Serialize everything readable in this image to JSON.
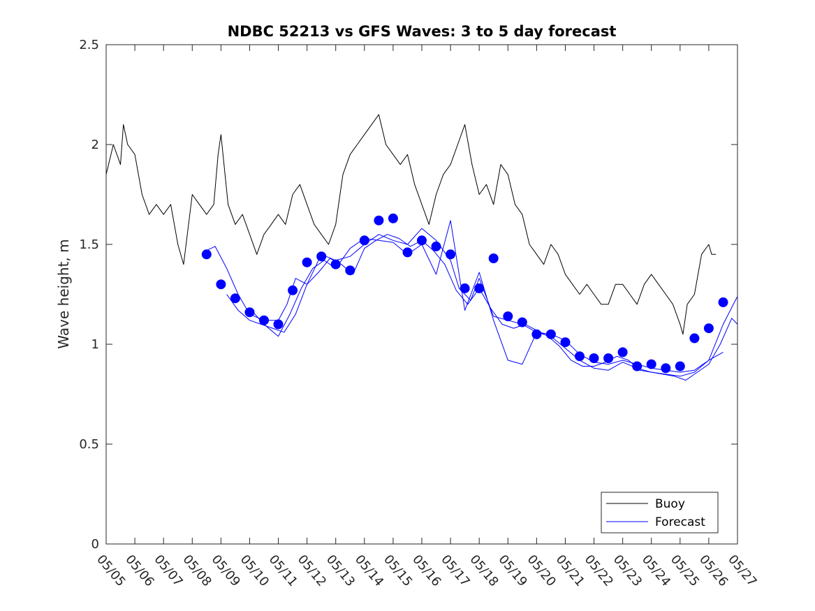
{
  "chart_data": {
    "type": "line",
    "title": "NDBC 52213 vs GFS Waves: 3 to 5 day forecast",
    "xlabel": "",
    "ylabel": "Wave height, m",
    "ylim": [
      0,
      2.5
    ],
    "yticks": [
      "0",
      "0.5",
      "1",
      "1.5",
      "2",
      "2.5"
    ],
    "xlim_days": [
      0,
      22
    ],
    "xticks": [
      "05/05",
      "05/06",
      "05/07",
      "05/08",
      "05/09",
      "05/10",
      "05/11",
      "05/12",
      "05/13",
      "05/14",
      "05/15",
      "05/16",
      "05/17",
      "05/18",
      "05/19",
      "05/20",
      "05/21",
      "05/22",
      "05/23",
      "05/24",
      "05/25",
      "05/26",
      "05/27"
    ],
    "grid": false,
    "legend_position": "bottom-right",
    "legend": [
      "Buoy",
      "Forecast"
    ],
    "colors": {
      "buoy": "#000000",
      "forecast": "#0000ff",
      "axes": "#262626"
    },
    "series": [
      {
        "name": "Buoy",
        "style": "line",
        "x": [
          0.0,
          0.25,
          0.5,
          0.6,
          0.75,
          1.0,
          1.25,
          1.5,
          1.75,
          2.0,
          2.25,
          2.5,
          2.7,
          3.0,
          3.25,
          3.5,
          3.75,
          3.9,
          4.0,
          4.25,
          4.5,
          4.75,
          5.0,
          5.25,
          5.5,
          5.75,
          6.0,
          6.25,
          6.5,
          6.75,
          7.0,
          7.25,
          7.5,
          7.75,
          8.0,
          8.25,
          8.5,
          8.75,
          9.0,
          9.25,
          9.5,
          9.75,
          10.0,
          10.25,
          10.5,
          10.75,
          11.0,
          11.25,
          11.5,
          11.75,
          12.0,
          12.25,
          12.5,
          12.75,
          13.0,
          13.25,
          13.5,
          13.75,
          14.0,
          14.25,
          14.5,
          14.75,
          15.0,
          15.25,
          15.5,
          15.75,
          16.0,
          16.25,
          16.5,
          16.75,
          17.0,
          17.25,
          17.5,
          17.75,
          18.0,
          18.25,
          18.5,
          18.75,
          19.0,
          19.25,
          19.5,
          19.75,
          20.0,
          20.1,
          20.25,
          20.5,
          20.75,
          21.0,
          21.1,
          21.25
        ],
        "y": [
          1.85,
          2.0,
          1.9,
          2.1,
          2.0,
          1.95,
          1.75,
          1.65,
          1.7,
          1.65,
          1.7,
          1.5,
          1.4,
          1.75,
          1.7,
          1.65,
          1.7,
          1.95,
          2.05,
          1.7,
          1.6,
          1.65,
          1.55,
          1.45,
          1.55,
          1.6,
          1.65,
          1.6,
          1.75,
          1.8,
          1.7,
          1.6,
          1.55,
          1.5,
          1.6,
          1.85,
          1.95,
          2.0,
          2.05,
          2.1,
          2.15,
          2.0,
          1.95,
          1.9,
          1.95,
          1.8,
          1.7,
          1.6,
          1.75,
          1.85,
          1.9,
          2.0,
          2.1,
          1.9,
          1.75,
          1.8,
          1.7,
          1.9,
          1.85,
          1.7,
          1.65,
          1.5,
          1.45,
          1.4,
          1.5,
          1.45,
          1.35,
          1.3,
          1.25,
          1.3,
          1.25,
          1.2,
          1.2,
          1.3,
          1.3,
          1.25,
          1.2,
          1.3,
          1.35,
          1.3,
          1.25,
          1.2,
          1.1,
          1.05,
          1.2,
          1.25,
          1.45,
          1.5,
          1.45,
          1.45
        ]
      },
      {
        "name": "Forecast",
        "style": "markers",
        "x": [
          3.5,
          4.0,
          4.5,
          5.0,
          5.5,
          6.0,
          6.5,
          7.0,
          7.5,
          8.0,
          8.5,
          9.0,
          9.5,
          10.0,
          10.5,
          11.0,
          11.5,
          12.0,
          12.5,
          13.0,
          13.5,
          14.0,
          14.5,
          15.0,
          15.5,
          16.0,
          16.5,
          17.0,
          17.5,
          18.0,
          18.5,
          19.0,
          19.5,
          20.0,
          20.5,
          21.0,
          21.5
        ],
        "y": [
          1.45,
          1.3,
          1.23,
          1.16,
          1.12,
          1.1,
          1.27,
          1.41,
          1.44,
          1.4,
          1.37,
          1.52,
          1.62,
          1.63,
          1.46,
          1.52,
          1.49,
          1.45,
          1.28,
          1.28,
          1.43,
          1.14,
          1.11,
          1.05,
          1.05,
          1.01,
          0.94,
          0.93,
          0.93,
          0.96,
          0.89,
          0.9,
          0.88,
          0.89,
          1.03,
          1.08,
          1.21
        ]
      },
      {
        "name": "Forecast",
        "style": "line",
        "x": [
          3.5,
          3.8,
          4.2,
          4.6,
          5.0,
          5.5,
          6.0,
          6.3,
          6.6,
          7.0,
          7.5,
          8.0,
          8.5,
          9.0,
          9.5,
          10.0,
          10.5,
          11.0,
          11.5,
          12.0,
          12.3,
          12.7,
          13.0,
          13.5,
          14.0,
          14.5,
          15.0,
          15.5,
          16.0,
          16.5,
          17.0,
          17.5,
          18.0,
          18.5,
          19.0,
          19.5,
          20.0,
          20.5,
          21.0,
          21.5,
          22.0
        ],
        "y": [
          1.47,
          1.49,
          1.38,
          1.25,
          1.15,
          1.12,
          1.12,
          1.2,
          1.33,
          1.3,
          1.45,
          1.42,
          1.44,
          1.5,
          1.55,
          1.52,
          1.5,
          1.58,
          1.52,
          1.42,
          1.28,
          1.22,
          1.33,
          1.14,
          1.12,
          1.1,
          1.06,
          1.05,
          1.02,
          0.95,
          0.91,
          0.9,
          0.92,
          0.9,
          0.88,
          0.87,
          0.86,
          0.87,
          0.92,
          1.1,
          1.24
        ]
      },
      {
        "name": "Forecast",
        "style": "line",
        "x": [
          4.2,
          4.6,
          5.0,
          5.4,
          5.8,
          6.2,
          6.6,
          7.0,
          7.4,
          7.8,
          8.2,
          8.6,
          9.0,
          9.4,
          9.8,
          10.2,
          10.6,
          11.0,
          11.4,
          11.8,
          12.2,
          12.6,
          13.0,
          13.4,
          13.8,
          14.2,
          14.6,
          15.0,
          15.4,
          15.8,
          16.2,
          16.6,
          17.0,
          17.4,
          17.8,
          18.2,
          18.6,
          19.0,
          19.4,
          19.8,
          20.2,
          20.6,
          21.0,
          21.4,
          21.8,
          22.0
        ],
        "y": [
          1.25,
          1.17,
          1.12,
          1.1,
          1.08,
          1.06,
          1.15,
          1.3,
          1.36,
          1.43,
          1.4,
          1.35,
          1.48,
          1.52,
          1.55,
          1.53,
          1.49,
          1.52,
          1.47,
          1.4,
          1.27,
          1.2,
          1.28,
          1.18,
          1.1,
          1.08,
          1.1,
          1.07,
          1.04,
          0.99,
          0.92,
          0.89,
          0.89,
          0.91,
          0.94,
          0.92,
          0.87,
          0.86,
          0.85,
          0.84,
          0.82,
          0.86,
          0.9,
          1.0,
          1.13,
          1.1
        ]
      },
      {
        "name": "Forecast",
        "style": "line",
        "x": [
          5.0,
          5.5,
          6.0,
          6.4,
          6.8,
          7.2,
          7.6,
          8.0,
          8.5,
          9.0,
          9.5,
          10.0,
          10.5,
          11.0,
          11.5,
          12.0,
          12.5,
          13.0,
          13.5,
          14.0,
          14.5,
          15.0,
          15.5,
          16.0,
          16.5,
          17.0,
          17.5,
          18.0,
          18.5,
          19.0,
          19.5,
          20.0,
          20.5,
          21.0,
          21.5
        ],
        "y": [
          1.18,
          1.1,
          1.04,
          1.15,
          1.28,
          1.38,
          1.42,
          1.38,
          1.48,
          1.53,
          1.52,
          1.51,
          1.45,
          1.5,
          1.35,
          1.62,
          1.17,
          1.36,
          1.12,
          0.92,
          0.9,
          1.06,
          1.04,
          0.98,
          0.92,
          0.88,
          0.87,
          0.91,
          0.88,
          0.86,
          0.85,
          0.84,
          0.86,
          0.92,
          0.96
        ]
      }
    ]
  }
}
